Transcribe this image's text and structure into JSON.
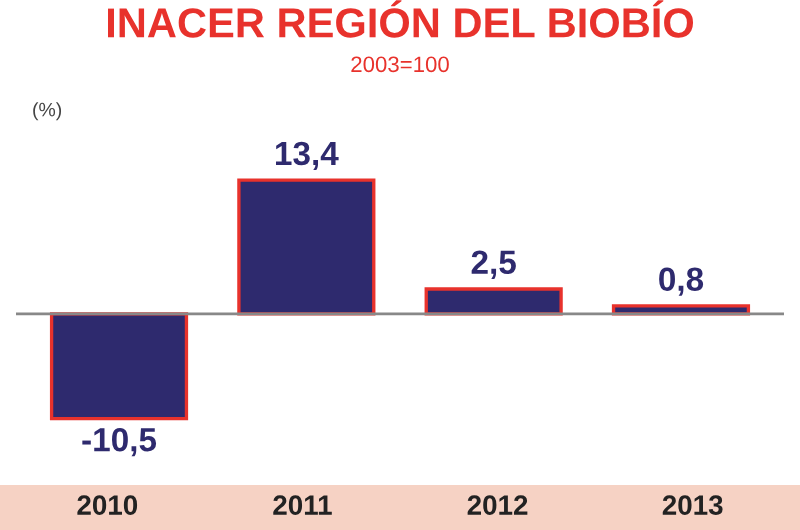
{
  "chart_data": {
    "type": "bar",
    "title": "INACER REGIÓN DEL BIOBÍO",
    "subtitle": "2003=100",
    "ylabel": "(%)",
    "categories": [
      "2010",
      "2011",
      "2012",
      "2013"
    ],
    "values": [
      -10.5,
      13.4,
      2.5,
      0.8
    ],
    "value_labels": [
      "-10,5",
      "13,4",
      "2,5",
      "0,8"
    ],
    "color": "#2e2a6e"
  }
}
